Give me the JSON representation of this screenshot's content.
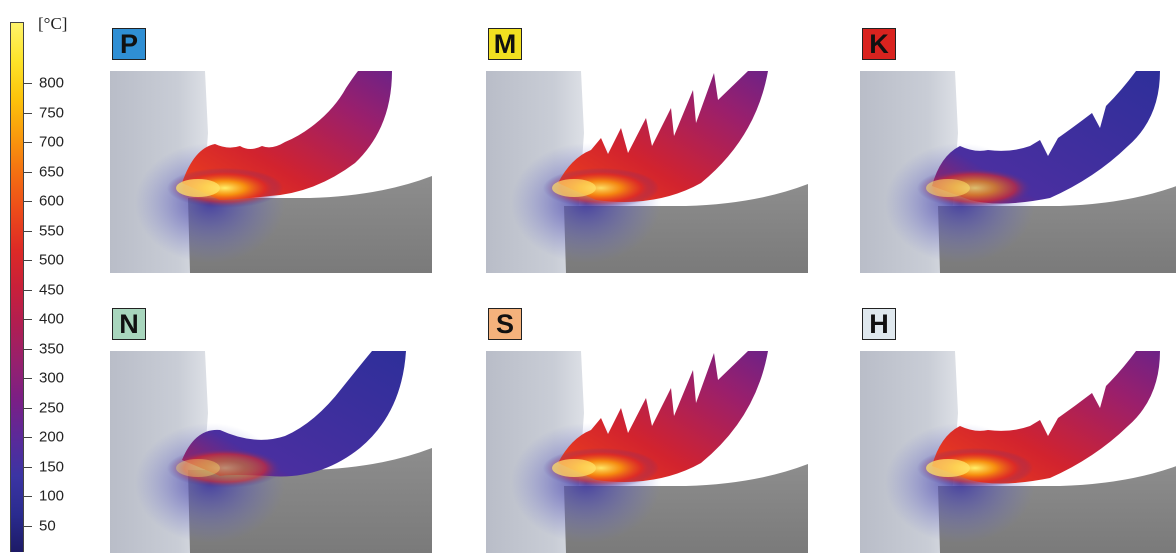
{
  "scale": {
    "unit": "[°C]",
    "ticks": [
      "800",
      "750",
      "700",
      "650",
      "600",
      "550",
      "500",
      "450",
      "400",
      "350",
      "300",
      "250",
      "200",
      "150",
      "100",
      "50"
    ],
    "colors": [
      "#1d1a66",
      "#2a2b8f",
      "#3b34a3",
      "#5a2a9a",
      "#7a1f86",
      "#96206e",
      "#b01e52",
      "#c9203a",
      "#dd2a26",
      "#ec4a1a",
      "#f46e12",
      "#f99a0d",
      "#fcc30b",
      "#fde42a",
      "#fff36a"
    ]
  },
  "panels": [
    {
      "label": "P",
      "badge_color": "#2f8fd4",
      "hot": 1.0,
      "chip": "smooth-scalloped"
    },
    {
      "label": "M",
      "badge_color": "#f2e020",
      "hot": 0.9,
      "chip": "sawtooth"
    },
    {
      "label": "K",
      "badge_color": "#d9231f",
      "hot": 0.75,
      "chip": "segmented-cool"
    },
    {
      "label": "N",
      "badge_color": "#a8d6bd",
      "hot": 0.5,
      "chip": "smooth-cool"
    },
    {
      "label": "S",
      "badge_color": "#f4b27c",
      "hot": 0.95,
      "chip": "sawtooth"
    },
    {
      "label": "H",
      "badge_color": "#dfe8ee",
      "hot": 1.0,
      "chip": "segmented-hot"
    }
  ]
}
